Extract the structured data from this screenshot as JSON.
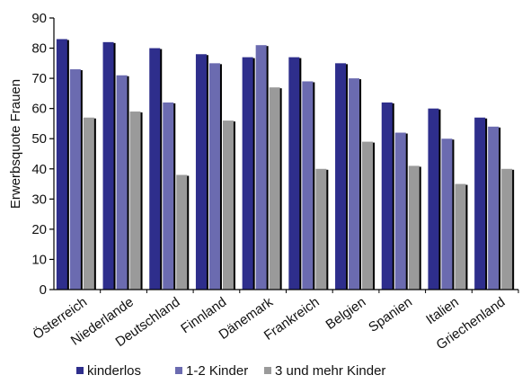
{
  "chart_data": {
    "type": "bar",
    "title": "",
    "xlabel": "",
    "ylabel": "Erwerbsquote Frauen",
    "ylim": [
      0,
      90
    ],
    "yticks": [
      "0",
      "10",
      "20",
      "30",
      "40",
      "50",
      "60",
      "70",
      "80",
      "90"
    ],
    "grid": false,
    "legend_position": "bottom",
    "categories": [
      "Österreich",
      "Niederlande",
      "Deutschland",
      "Finnland",
      "Dänemark",
      "Frankreich",
      "Belgien",
      "Spanien",
      "Italien",
      "Griechenland"
    ],
    "series": [
      {
        "name": "kinderlos",
        "color": "#2e2e8c",
        "values": [
          83,
          82,
          80,
          78,
          77,
          77,
          75,
          62,
          60,
          57
        ]
      },
      {
        "name": "1-2 Kinder",
        "color": "#6b6bb0",
        "values": [
          73,
          71,
          62,
          75,
          81,
          69,
          70,
          52,
          50,
          54
        ]
      },
      {
        "name": "3 und mehr Kinder",
        "color": "#9a9a9a",
        "values": [
          57,
          59,
          38,
          56,
          67,
          40,
          49,
          41,
          35,
          40
        ]
      }
    ]
  }
}
